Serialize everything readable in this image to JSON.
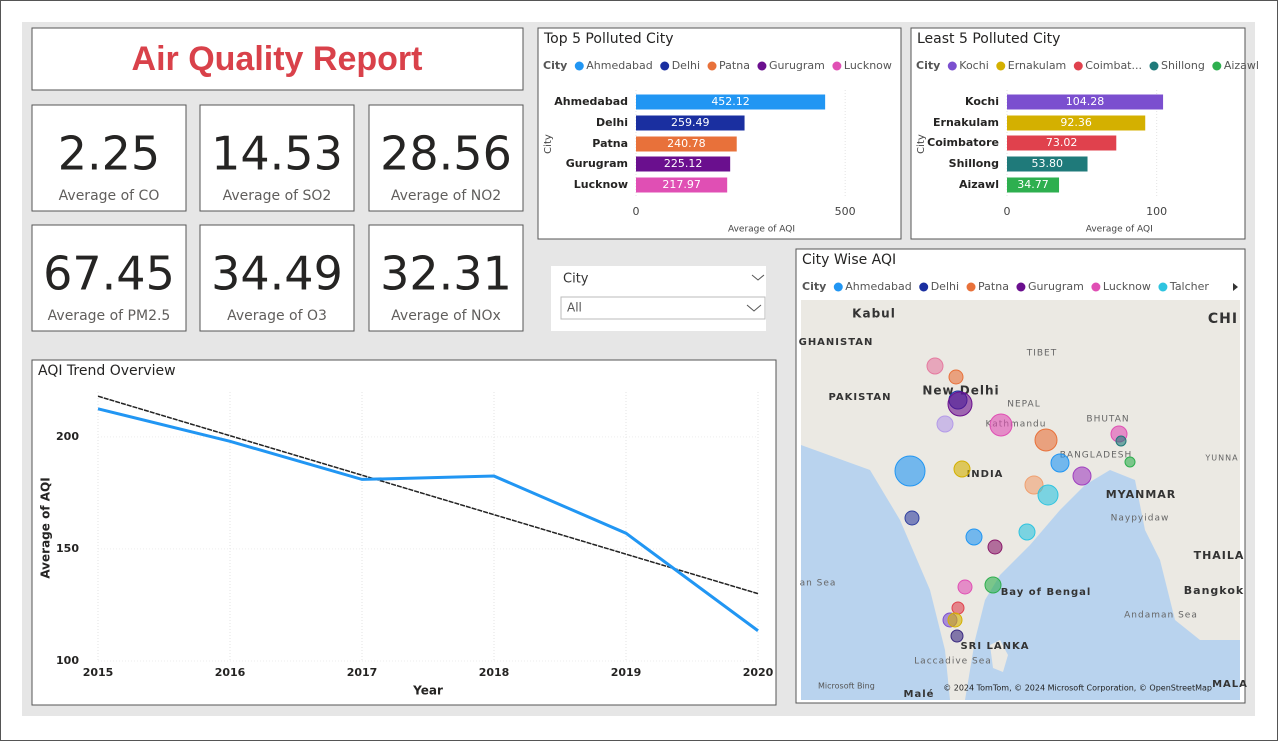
{
  "header": {
    "title": "Air Quality Report"
  },
  "cards": [
    {
      "value": 2.25,
      "label": "Average of CO"
    },
    {
      "value": 14.53,
      "label": "Average of SO2"
    },
    {
      "value": 28.56,
      "label": "Average of NO2"
    },
    {
      "value": 67.45,
      "label": "Average of PM2.5"
    },
    {
      "value": 34.49,
      "label": "Average of O3"
    },
    {
      "value": 32.31,
      "label": "Average of NOx"
    }
  ],
  "slicer": {
    "title": "City",
    "selection": "All"
  },
  "chart_data": [
    {
      "type": "hbar",
      "title": "Top 5 Polluted City",
      "legend_title": "City",
      "categories": [
        "Ahmedabad",
        "Delhi",
        "Patna",
        "Gurugram",
        "Lucknow"
      ],
      "values": [
        452.12,
        259.49,
        240.78,
        225.12,
        217.97
      ],
      "value_labels": [
        "452.12",
        "259.49",
        "240.78",
        "225.12",
        "217.97"
      ],
      "colors": [
        "#2196f3",
        "#1a2fa0",
        "#e8713a",
        "#6a0f8e",
        "#e04fb4"
      ],
      "xlim": [
        0,
        600
      ],
      "xticks": [
        0,
        500
      ],
      "x_label": "Average of AQI",
      "y_label": "City",
      "grid": true
    },
    {
      "type": "hbar",
      "title": "Least 5 Polluted City",
      "legend_title": "City",
      "categories": [
        "Kochi",
        "Ernakulam",
        "Coimbatore",
        "Shillong",
        "Aizawl"
      ],
      "legend_labels": [
        "Kochi",
        "Ernakulam",
        "Coimbat...",
        "Shillong",
        "Aizawl"
      ],
      "values": [
        104.28,
        92.36,
        73.02,
        53.8,
        34.77
      ],
      "value_labels": [
        "104.28",
        "92.36",
        "73.02",
        "53.80",
        "34.77"
      ],
      "colors": [
        "#7b4fcf",
        "#d4b000",
        "#e0414d",
        "#1f7a7a",
        "#2eaf4f"
      ],
      "xlim": [
        0,
        150
      ],
      "xticks": [
        0,
        100
      ],
      "x_label": "Average of AQI",
      "y_label": "City",
      "grid": true
    },
    {
      "type": "line",
      "title": "AQI Trend Overview",
      "categories": [
        "2015",
        "2016",
        "2017",
        "2018",
        "2019",
        "2020"
      ],
      "values": [
        212.5,
        198,
        181,
        182.5,
        157,
        113.5
      ],
      "color": "#2196f3",
      "ylim": [
        100,
        220
      ],
      "yticks": [
        100,
        150,
        200
      ],
      "x_label": "Year",
      "y_label": "Average of AQI",
      "trendline": true,
      "grid": true
    },
    {
      "type": "map",
      "title": "City Wise AQI",
      "legend_title": "City",
      "series": [
        {
          "name": "Ahmedabad",
          "color": "#2196f3"
        },
        {
          "name": "Delhi",
          "color": "#1a2fa0"
        },
        {
          "name": "Patna",
          "color": "#e8713a"
        },
        {
          "name": "Gurugram",
          "color": "#6a0f8e"
        },
        {
          "name": "Lucknow",
          "color": "#e04fb4"
        },
        {
          "name": "Talcher",
          "color": "#2ec4e0"
        }
      ],
      "places": [
        "Kabul",
        "GHANISTAN",
        "PAKISTAN",
        "New Delhi",
        "TIBET",
        "NEPAL",
        "Kathmandu",
        "BHUTAN",
        "BANGLADESH",
        "INDIA",
        "MYANMAR",
        "Naypyidaw",
        "YUNNA",
        "CHI",
        "THAILA",
        "Bangkok",
        "Bay of Bengal",
        "Andaman Sea",
        "an Sea",
        "SRI LANKA",
        "Laccadive Sea",
        "Malé",
        "MALA"
      ],
      "provider": "Microsoft Bing",
      "attribution": "© 2024 TomTom, © 2024 Microsoft Corporation, © OpenStreetMap"
    }
  ]
}
